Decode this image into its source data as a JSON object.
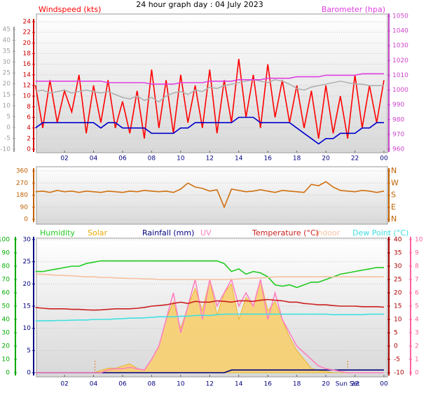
{
  "chart_data": [
    {
      "type": "line",
      "title": "24 hour graph day : 04 July 2023",
      "x": [
        0,
        0.5,
        1,
        1.5,
        2,
        2.5,
        3,
        3.5,
        4,
        4.5,
        5,
        5.5,
        6,
        6.5,
        7,
        7.5,
        8,
        8.5,
        9,
        9.5,
        10,
        10.5,
        11,
        11.5,
        12,
        12.5,
        13,
        13.5,
        14,
        14.5,
        15,
        15.5,
        16,
        16.5,
        17,
        17.5,
        18,
        18.5,
        19,
        19.5,
        20,
        20.5,
        21,
        21.5,
        22,
        22.5,
        23,
        23.5,
        24
      ],
      "xlim": [
        0,
        24
      ],
      "xticks": [
        {
          "value": 2,
          "label": "02"
        },
        {
          "value": 4,
          "label": "04"
        },
        {
          "value": 6,
          "label": "06"
        },
        {
          "value": 8,
          "label": "08"
        },
        10,
        12,
        14,
        16,
        18,
        20,
        22,
        {
          "value": 24,
          "label": "00"
        }
      ],
      "axes": [
        {
          "lim": [
            -10,
            45
          ],
          "ticks": [
            -10,
            -5,
            0,
            5,
            10,
            15,
            20,
            25,
            30,
            35,
            40,
            45
          ],
          "color": "#a0a0a0"
        },
        {
          "lim": [
            0,
            24
          ],
          "ticks": [
            0,
            2,
            4,
            6,
            8,
            10,
            12,
            14,
            16,
            18,
            20,
            22,
            24
          ],
          "color": "#cc0000",
          "grid": true
        },
        {
          "lim": [
            960,
            1050
          ],
          "ticks": [
            960,
            970,
            980,
            990,
            1000,
            1010,
            1020,
            1030,
            1040,
            1050
          ],
          "color": "#cc44cc"
        }
      ],
      "series": [
        {
          "name": "Windspeed (kts)",
          "color": "#ff0000",
          "axis": 1,
          "values": [
            12,
            4,
            13,
            5,
            11,
            7,
            14,
            3,
            12,
            5,
            13,
            4,
            9,
            3,
            11,
            2,
            15,
            4,
            13,
            3,
            14,
            5,
            12,
            4,
            15,
            3,
            13,
            5,
            17,
            6,
            14,
            4,
            16,
            6,
            13,
            5,
            12,
            4,
            11,
            2,
            12,
            3,
            10,
            2,
            14,
            4,
            12,
            5,
            13
          ]
        },
        {
          "color": "#b0b0b0",
          "axis": 2,
          "values": [
            999,
            1000,
            998,
            999,
            1000,
            998,
            999,
            1000,
            999,
            998,
            999,
            997,
            995,
            994,
            996,
            993,
            995,
            992,
            996,
            998,
            999,
            997,
            1000,
            999,
            1002,
            1001,
            1003,
            1004,
            1005,
            1006,
            1007,
            1006,
            1005,
            1007,
            1006,
            1004,
            1001,
            1000,
            1002,
            1003,
            1004,
            1005,
            1006,
            1005,
            1004,
            1004,
            1003,
            1003,
            1003
          ]
        },
        {
          "color": "#0000cc",
          "axis": 1,
          "values": [
            4,
            5,
            5,
            5,
            5,
            5,
            5,
            5,
            5,
            4,
            5,
            5,
            4,
            4,
            4,
            4,
            3,
            3,
            3,
            3,
            4,
            4,
            5,
            5,
            5,
            5,
            5,
            5,
            6,
            6,
            6,
            5,
            5,
            5,
            5,
            5,
            4,
            3,
            2,
            1,
            2,
            2,
            3,
            3,
            3,
            4,
            4,
            5,
            5
          ]
        },
        {
          "name": "Barometer (hpa)",
          "color": "#e040e0",
          "axis": 2,
          "values": [
            1006,
            1006,
            1006,
            1006,
            1006,
            1006,
            1006,
            1006,
            1006,
            1006,
            1005,
            1005,
            1005,
            1005,
            1005,
            1005,
            1004,
            1004,
            1004,
            1004,
            1005,
            1005,
            1005,
            1005,
            1006,
            1006,
            1006,
            1006,
            1007,
            1007,
            1007,
            1007,
            1008,
            1008,
            1008,
            1008,
            1009,
            1009,
            1009,
            1009,
            1010,
            1010,
            1010,
            1010,
            1010,
            1011,
            1011,
            1011,
            1011
          ]
        }
      ]
    },
    {
      "type": "line",
      "x": [
        0,
        0.5,
        1,
        1.5,
        2,
        2.5,
        3,
        3.5,
        4,
        4.5,
        5,
        5.5,
        6,
        6.5,
        7,
        7.5,
        8,
        8.5,
        9,
        9.5,
        10,
        10.5,
        11,
        11.5,
        12,
        12.5,
        13,
        13.5,
        14,
        14.5,
        15,
        15.5,
        16,
        16.5,
        17,
        17.5,
        18,
        18.5,
        19,
        19.5,
        20,
        20.5,
        21,
        21.5,
        22,
        22.5,
        23,
        23.5,
        24
      ],
      "xlim": [
        0,
        24
      ],
      "axes": [
        {
          "lim": [
            0,
            360
          ],
          "ticks": [
            0,
            90,
            180,
            270,
            360
          ],
          "color": "#c06000",
          "grid": true
        },
        {
          "lim": [
            0,
            360
          ],
          "ticks": [
            {
              "value": 0,
              "label": "N"
            },
            {
              "value": 90,
              "label": "E"
            },
            {
              "value": 180,
              "label": "S"
            },
            {
              "value": 270,
              "label": "W"
            },
            {
              "value": 360,
              "label": "N"
            }
          ],
          "color": "#c06000"
        }
      ],
      "series": [
        {
          "color": "#d07010",
          "axis": 0,
          "values": [
            205,
            210,
            200,
            215,
            205,
            210,
            200,
            210,
            205,
            200,
            210,
            205,
            200,
            210,
            205,
            215,
            210,
            205,
            210,
            200,
            225,
            270,
            240,
            230,
            210,
            220,
            90,
            225,
            215,
            205,
            210,
            220,
            210,
            200,
            215,
            210,
            205,
            200,
            260,
            250,
            280,
            240,
            215,
            210,
            205,
            215,
            210,
            200,
            210
          ]
        }
      ]
    },
    {
      "type": "line",
      "x": [
        0,
        0.5,
        1,
        1.5,
        2,
        2.5,
        3,
        3.5,
        4,
        4.5,
        5,
        5.5,
        6,
        6.5,
        7,
        7.5,
        8,
        8.5,
        9,
        9.5,
        10,
        10.5,
        11,
        11.5,
        12,
        12.5,
        13,
        13.5,
        14,
        14.5,
        15,
        15.5,
        16,
        16.5,
        17,
        17.5,
        18,
        18.5,
        19,
        19.5,
        20,
        20.5,
        21,
        21.5,
        22,
        22.5,
        23,
        23.5,
        24
      ],
      "xlim": [
        0,
        24
      ],
      "xticks": [
        {
          "value": 2,
          "label": "02"
        },
        {
          "value": 4,
          "label": "04"
        },
        {
          "value": 6,
          "label": "06"
        },
        {
          "value": 8,
          "label": "08"
        },
        10,
        12,
        14,
        16,
        18,
        20,
        22,
        {
          "value": 24,
          "label": "00"
        }
      ],
      "axes": [
        {
          "lim": [
            0,
            100
          ],
          "ticks": [
            0,
            10,
            20,
            30,
            40,
            50,
            60,
            70,
            80,
            90,
            100
          ],
          "color": "#00aa00"
        },
        {
          "lim": [
            0,
            30
          ],
          "ticks": [
            0,
            5,
            10,
            15,
            20,
            25,
            30
          ],
          "color": "#000080",
          "grid": true
        },
        {
          "lim": [
            -10,
            40
          ],
          "ticks": [
            -10,
            -5,
            0,
            5,
            10,
            15,
            20,
            25,
            30,
            35,
            40
          ],
          "color": "#aa0000"
        },
        {
          "lim": [
            0,
            10
          ],
          "ticks": [
            0,
            1,
            2,
            3,
            4,
            5,
            6,
            7,
            8,
            9,
            10
          ],
          "color": "#ff60a0"
        }
      ],
      "series": [
        {
          "name": "Humidity",
          "color": "#22cc22",
          "axis": 0,
          "values": [
            76,
            76,
            77,
            78,
            79,
            80,
            80,
            82,
            83,
            84,
            84,
            84,
            84,
            84,
            84,
            84,
            84,
            84,
            84,
            84,
            84,
            84,
            84,
            84,
            84,
            84,
            82,
            76,
            78,
            74,
            76,
            75,
            72,
            66,
            65,
            66,
            64,
            66,
            68,
            68,
            70,
            72,
            74,
            75,
            76,
            77,
            78,
            79,
            79
          ]
        },
        {
          "name": "Solar",
          "color": "#e8a800",
          "fill": "#f8d070",
          "axis": 1,
          "values": [
            0,
            0,
            0,
            0,
            0,
            0,
            0,
            0,
            0,
            0.5,
            1,
            1,
            1.5,
            2,
            1,
            0.5,
            3,
            6,
            12,
            16,
            10,
            15,
            19,
            14,
            21,
            13,
            18,
            20,
            12,
            17,
            15,
            21,
            14,
            16,
            12,
            8,
            5,
            3,
            1,
            0.5,
            0.3,
            0,
            0,
            0,
            0,
            0,
            0,
            0,
            0
          ]
        },
        {
          "name": "Rainfall (mm)",
          "color": "#000080",
          "axis": 1,
          "values": [
            0,
            0,
            0,
            0,
            0,
            0,
            0,
            0,
            0,
            0,
            0,
            0,
            0,
            0,
            0,
            0,
            0,
            0,
            0,
            0,
            0,
            0,
            0,
            0,
            0,
            0,
            0,
            0.6,
            0.6,
            0.6,
            0.6,
            0.6,
            0.6,
            0.6,
            0.6,
            0.6,
            0.6,
            0.6,
            0.6,
            0.6,
            0.6,
            0.6,
            0.6,
            0.6,
            0.6,
            0.6,
            0.6,
            0.6,
            0.6
          ]
        },
        {
          "name": "UV",
          "color": "#ff80c0",
          "axis": 3,
          "values": [
            0,
            0,
            0,
            0,
            0,
            0,
            0,
            0,
            0,
            0,
            0.2,
            0.3,
            0.3,
            0.4,
            0.3,
            0.2,
            1,
            2,
            4,
            6,
            3,
            5,
            7,
            4,
            7,
            5,
            6,
            7,
            5,
            6,
            5,
            7,
            4,
            6,
            4,
            3,
            2,
            1.5,
            1,
            0.5,
            0.3,
            0.2,
            0.1,
            0,
            0,
            0,
            0,
            0,
            0
          ]
        },
        {
          "name": "Temperature (°C)",
          "color": "#cc2020",
          "axis": 2,
          "values": [
            14.5,
            14.2,
            14,
            14,
            14,
            13.8,
            13.8,
            13.6,
            13.5,
            13.6,
            13.8,
            14,
            14,
            14,
            14.2,
            14.5,
            15,
            15.2,
            15.5,
            16,
            16.5,
            16,
            16.8,
            16.5,
            16.5,
            17,
            16.8,
            16.5,
            17,
            17,
            16.8,
            17.2,
            17.5,
            17.2,
            17,
            16.5,
            16.5,
            16,
            15.8,
            15.5,
            15.5,
            15.2,
            15,
            15,
            15,
            14.8,
            14.8,
            14.8,
            14.6
          ]
        },
        {
          "name": "Indoor",
          "color": "#f5c0a0",
          "axis": 2,
          "values": [
            27,
            27,
            26.8,
            26.6,
            26.5,
            26.4,
            26.2,
            26,
            26,
            25.8,
            25.8,
            25.6,
            25.5,
            25.4,
            25.4,
            25.2,
            25.2,
            25,
            25,
            25,
            25,
            25,
            25,
            25,
            25,
            25,
            25,
            25,
            25.2,
            25.4,
            25.5,
            25.6,
            25.8,
            26,
            26,
            26,
            26,
            26,
            26,
            26,
            26,
            26,
            26,
            26,
            26,
            26,
            26,
            26,
            26
          ]
        },
        {
          "name": "Dew Point (°C)",
          "color": "#40e0e0",
          "axis": 2,
          "values": [
            9.5,
            9.5,
            9.5,
            9.6,
            9.6,
            9.7,
            9.8,
            9.8,
            10,
            10,
            10,
            10.2,
            10.3,
            10.5,
            10.5,
            10.6,
            10.8,
            11,
            11,
            11,
            11.2,
            11.2,
            11.5,
            11.5,
            11.5,
            11.8,
            12,
            12,
            12,
            12,
            12,
            12,
            12,
            12,
            12,
            12,
            12,
            12,
            12,
            12,
            12,
            11.8,
            11.8,
            11.8,
            11.8,
            11.8,
            12,
            12,
            12
          ]
        }
      ],
      "sunrise_x": 4.1,
      "sunset": {
        "label": "Sun Set",
        "x": 21.5
      }
    }
  ]
}
